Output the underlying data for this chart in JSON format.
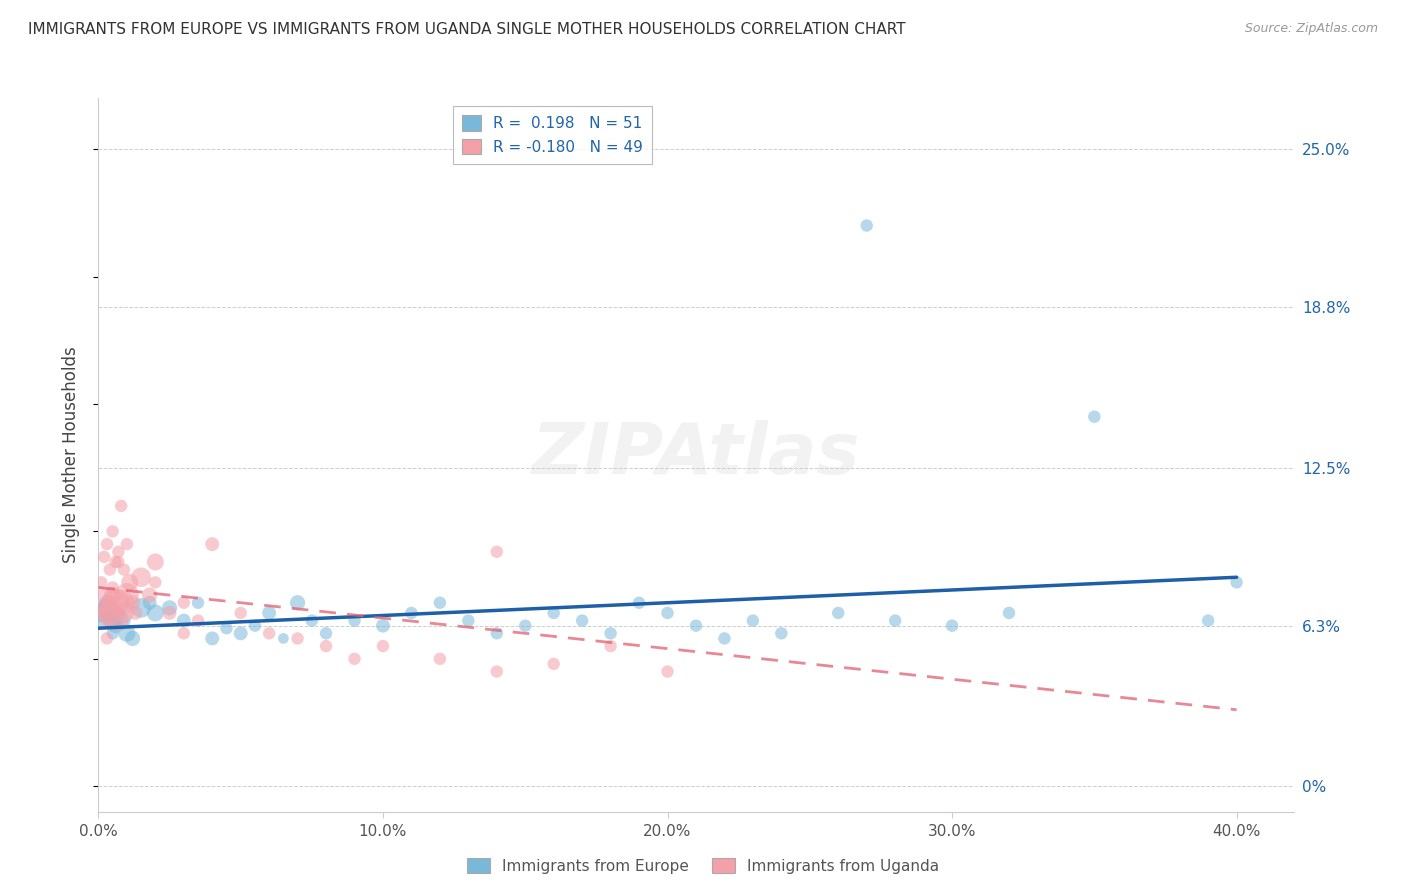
{
  "title": "IMMIGRANTS FROM EUROPE VS IMMIGRANTS FROM UGANDA SINGLE MOTHER HOUSEHOLDS CORRELATION CHART",
  "source": "Source: ZipAtlas.com",
  "ylabel": "Single Mother Households",
  "xlim": [
    0.0,
    0.42
  ],
  "ylim": [
    -0.01,
    0.27
  ],
  "xticks": [
    0.0,
    0.1,
    0.2,
    0.3,
    0.4
  ],
  "xtick_labels": [
    "0.0%",
    "10.0%",
    "20.0%",
    "30.0%",
    "40.0%"
  ],
  "ytick_vals": [
    0.0,
    0.063,
    0.125,
    0.188,
    0.25
  ],
  "ytick_labels": [
    "0%",
    "6.3%",
    "12.5%",
    "18.8%",
    "25.0%"
  ],
  "blue_R": 0.198,
  "blue_N": 51,
  "pink_R": -0.18,
  "pink_N": 49,
  "blue_color": "#7ab8d9",
  "pink_color": "#f4a0a8",
  "blue_line_color": "#1e5fa8",
  "pink_line_color": "#e06070",
  "blue_scatter_x": [
    0.001,
    0.002,
    0.003,
    0.003,
    0.004,
    0.005,
    0.005,
    0.006,
    0.007,
    0.008,
    0.01,
    0.012,
    0.015,
    0.018,
    0.02,
    0.025,
    0.03,
    0.035,
    0.04,
    0.045,
    0.05,
    0.055,
    0.06,
    0.065,
    0.07,
    0.075,
    0.08,
    0.09,
    0.1,
    0.11,
    0.12,
    0.13,
    0.14,
    0.15,
    0.16,
    0.17,
    0.18,
    0.19,
    0.2,
    0.21,
    0.22,
    0.23,
    0.24,
    0.26,
    0.28,
    0.3,
    0.32,
    0.27,
    0.39,
    0.4,
    0.35
  ],
  "blue_scatter_y": [
    0.068,
    0.065,
    0.072,
    0.07,
    0.068,
    0.065,
    0.06,
    0.063,
    0.068,
    0.065,
    0.06,
    0.058,
    0.07,
    0.072,
    0.068,
    0.07,
    0.065,
    0.072,
    0.058,
    0.062,
    0.06,
    0.063,
    0.068,
    0.058,
    0.072,
    0.065,
    0.06,
    0.065,
    0.063,
    0.068,
    0.072,
    0.065,
    0.06,
    0.063,
    0.068,
    0.065,
    0.06,
    0.072,
    0.068,
    0.063,
    0.058,
    0.065,
    0.06,
    0.068,
    0.065,
    0.063,
    0.068,
    0.22,
    0.065,
    0.08,
    0.145
  ],
  "blue_scatter_sizes": [
    180,
    140,
    120,
    200,
    100,
    160,
    80,
    120,
    100,
    180,
    150,
    120,
    200,
    100,
    150,
    120,
    100,
    80,
    100,
    80,
    100,
    80,
    100,
    60,
    120,
    80,
    80,
    80,
    100,
    80,
    80,
    80,
    80,
    80,
    80,
    80,
    80,
    80,
    80,
    80,
    80,
    80,
    80,
    80,
    80,
    80,
    80,
    80,
    80,
    80,
    80
  ],
  "pink_scatter_x": [
    0.001,
    0.001,
    0.002,
    0.002,
    0.003,
    0.003,
    0.004,
    0.004,
    0.005,
    0.005,
    0.006,
    0.006,
    0.007,
    0.007,
    0.008,
    0.008,
    0.009,
    0.009,
    0.01,
    0.01,
    0.011,
    0.012,
    0.013,
    0.015,
    0.018,
    0.02,
    0.025,
    0.03,
    0.035,
    0.04,
    0.05,
    0.06,
    0.07,
    0.08,
    0.09,
    0.1,
    0.12,
    0.14,
    0.16,
    0.18,
    0.2,
    0.14,
    0.003,
    0.005,
    0.007,
    0.003,
    0.005,
    0.02,
    0.03
  ],
  "pink_scatter_y": [
    0.068,
    0.08,
    0.075,
    0.09,
    0.07,
    0.095,
    0.068,
    0.085,
    0.075,
    0.1,
    0.072,
    0.088,
    0.065,
    0.092,
    0.072,
    0.11,
    0.068,
    0.085,
    0.075,
    0.095,
    0.08,
    0.072,
    0.068,
    0.082,
    0.075,
    0.088,
    0.068,
    0.072,
    0.065,
    0.095,
    0.068,
    0.06,
    0.058,
    0.055,
    0.05,
    0.055,
    0.05,
    0.045,
    0.048,
    0.055,
    0.045,
    0.092,
    0.065,
    0.078,
    0.088,
    0.058,
    0.072,
    0.08,
    0.06
  ],
  "pink_scatter_sizes": [
    100,
    80,
    120,
    80,
    200,
    80,
    300,
    80,
    150,
    80,
    400,
    80,
    200,
    80,
    350,
    80,
    200,
    80,
    300,
    80,
    150,
    120,
    100,
    200,
    120,
    150,
    100,
    80,
    80,
    100,
    80,
    80,
    80,
    80,
    80,
    80,
    80,
    80,
    80,
    80,
    80,
    80,
    80,
    80,
    80,
    80,
    80,
    80,
    80
  ],
  "blue_line_x0": 0.0,
  "blue_line_x1": 0.4,
  "blue_line_y0": 0.062,
  "blue_line_y1": 0.082,
  "pink_line_x0": 0.0,
  "pink_line_x1": 0.4,
  "pink_line_y0": 0.078,
  "pink_line_y1": 0.03,
  "background_color": "#ffffff",
  "grid_color": "#b0b0b0",
  "title_color": "#333333",
  "axis_color": "#888888",
  "label_color": "#2166ac"
}
